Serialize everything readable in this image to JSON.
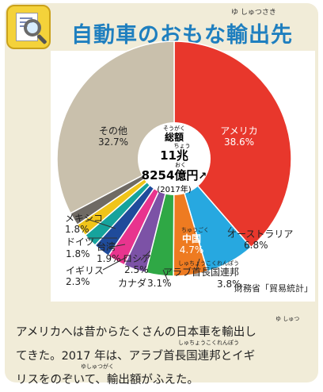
{
  "header": {
    "title": "自動車のおもな輸出先",
    "title_ruby": "ゆ しゅつさき"
  },
  "chart_data": {
    "type": "pie",
    "total_label": "総額",
    "total_label_ruby": "そうがく",
    "total_chou_ruby": "ちょう",
    "total_oku_ruby": "おく",
    "total_line1": "11兆",
    "total_line2": "8254億円",
    "year": "(2017年)",
    "slices": [
      {
        "name": "アメリカ",
        "value": 38.6,
        "pct": "38.6%",
        "color": "#e8372c"
      },
      {
        "name": "オーストラリア",
        "value": 6.8,
        "pct": "6.8%",
        "color": "#27a8e0"
      },
      {
        "name": "中国",
        "value": 4.7,
        "pct": "4.7%",
        "color": "#ee7b21",
        "ruby": "ちゅうごく"
      },
      {
        "name": "アラブ首長国連邦",
        "value": 3.8,
        "pct": "3.8%",
        "color": "#2fa845",
        "ruby": "しゅちょうこくれんぽう"
      },
      {
        "name": "カナダ",
        "value": 3.1,
        "pct": "3.1%",
        "color": "#7c52a6"
      },
      {
        "name": "ロシア",
        "value": 2.5,
        "pct": "2.5%",
        "color": "#e8348e"
      },
      {
        "name": "イギリス",
        "value": 2.3,
        "pct": "2.3%",
        "color": "#1f4b9b"
      },
      {
        "name": "台湾",
        "value": 1.9,
        "pct": "1.9%",
        "color": "#16a39c"
      },
      {
        "name": "ドイツ",
        "value": 1.8,
        "pct": "1.8%",
        "color": "#f0c419"
      },
      {
        "name": "メキシコ",
        "value": 1.8,
        "pct": "1.8%",
        "color": "#6f6a64"
      },
      {
        "name": "その他",
        "value": 32.7,
        "pct": "32.7%",
        "color": "#c9c0ac"
      }
    ],
    "source": "財務省「貿易統計」"
  },
  "description": {
    "line1": "アメリカへは昔からたくさんの日本車を輸出し",
    "line2": "てきた。2017 年は、アラブ首長国連邦とイギ",
    "line3": "リスをのぞいて、輸出額がふえた。",
    "ruby_yushutsu": "ゆ しゅつ",
    "ruby_shucho": "しゅちょうこくれんぽう",
    "ruby_yushutsugaku": "ゆしゅつがく"
  }
}
